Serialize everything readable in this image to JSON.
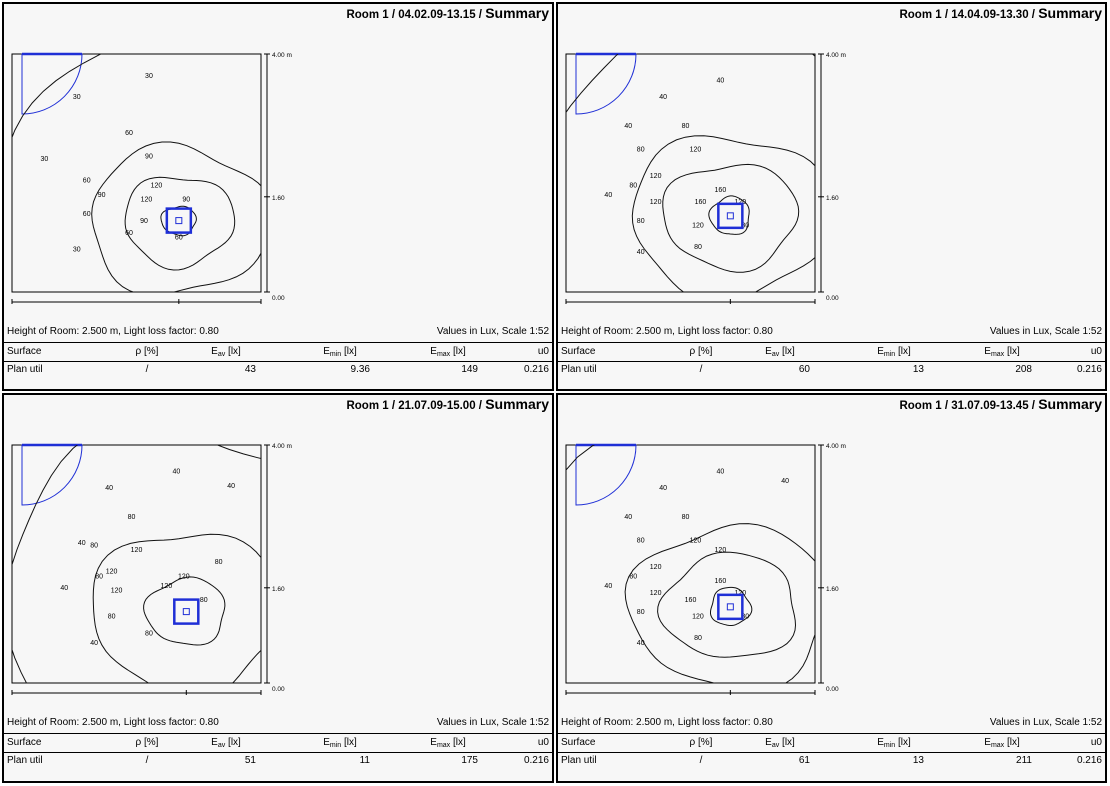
{
  "header": {
    "surface": "Surface",
    "rho_label": "ρ [%]",
    "eav_base": "E",
    "eav_sub": "av",
    "eav_unit": " [lx]",
    "emin_base": "E",
    "emin_sub": "min",
    "emin_unit": " [lx]",
    "emax_base": "E",
    "emax_sub": "max",
    "emax_unit": " [lx]",
    "u0": "u0"
  },
  "axis": {
    "x0": "0.00",
    "xmid": "2.70",
    "xmax": "4.00 m",
    "y0": "0.00",
    "ymid": "1.60",
    "ymax": "4.00 m"
  },
  "panels": [
    {
      "title_room": "Room 1 / 04.02.09-13.15 / ",
      "title_summary": "Summary",
      "info": "Height of Room: 2.500 m, Light loss factor: 0.80",
      "scale": "Values in Lux, Scale 1:52",
      "row": {
        "surface": "Plan util",
        "rho": "/",
        "eav": "43",
        "emin": "9.36",
        "emax": "149",
        "u0": "0.216"
      },
      "contours": [
        {
          "level": "30",
          "labels": [
            [
              0.26,
              0.19
            ],
            [
              0.13,
              0.45
            ],
            [
              0.26,
              0.83
            ],
            [
              0.55,
              0.1
            ]
          ]
        },
        {
          "level": "60",
          "labels": [
            [
              0.47,
              0.34
            ],
            [
              0.3,
              0.54
            ],
            [
              0.3,
              0.68
            ],
            [
              0.67,
              0.78
            ],
            [
              0.47,
              0.76
            ]
          ]
        },
        {
          "level": "90",
          "labels": [
            [
              0.55,
              0.44
            ],
            [
              0.36,
              0.6
            ],
            [
              0.53,
              0.71
            ],
            [
              0.7,
              0.62
            ]
          ]
        },
        {
          "level": "120",
          "labels": [
            [
              0.58,
              0.56
            ],
            [
              0.54,
              0.62
            ]
          ]
        }
      ]
    },
    {
      "title_room": "Room 1 / 14.04.09-13.30 / ",
      "title_summary": "Summary",
      "info": "Height of Room: 2.500 m, Light loss factor: 0.80",
      "scale": "Values in Lux, Scale 1:52",
      "row": {
        "surface": "Plan util",
        "rho": "/",
        "eav": "60",
        "emin": "13",
        "emax": "208",
        "u0": "0.216"
      },
      "contours": [
        {
          "level": "40",
          "labels": [
            [
              0.39,
              0.19
            ],
            [
              0.62,
              0.12
            ],
            [
              0.25,
              0.31
            ],
            [
              0.17,
              0.6
            ],
            [
              0.3,
              0.84
            ]
          ]
        },
        {
          "level": "80",
          "labels": [
            [
              0.48,
              0.31
            ],
            [
              0.3,
              0.41
            ],
            [
              0.27,
              0.56
            ],
            [
              0.3,
              0.71
            ],
            [
              0.53,
              0.82
            ],
            [
              0.72,
              0.73
            ]
          ]
        },
        {
          "level": "120",
          "labels": [
            [
              0.52,
              0.41
            ],
            [
              0.36,
              0.52
            ],
            [
              0.36,
              0.63
            ],
            [
              0.53,
              0.73
            ],
            [
              0.7,
              0.63
            ]
          ]
        },
        {
          "level": "160",
          "labels": [
            [
              0.54,
              0.63
            ],
            [
              0.62,
              0.58
            ]
          ]
        }
      ]
    },
    {
      "title_room": "Room 1 / 21.07.09-15.00 / ",
      "title_summary": "Summary",
      "info": "Height of Room: 2.500 m, Light loss factor: 0.80",
      "scale": "Values in Lux, Scale 1:52",
      "row": {
        "surface": "Plan util",
        "rho": "/",
        "eav": "51",
        "emin": "11",
        "emax": "175",
        "u0": "0.216"
      },
      "contours": [
        {
          "level": "40",
          "labels": [
            [
              0.39,
              0.19
            ],
            [
              0.66,
              0.12
            ],
            [
              0.88,
              0.18
            ],
            [
              0.28,
              0.42
            ],
            [
              0.21,
              0.61
            ],
            [
              0.33,
              0.84
            ]
          ]
        },
        {
          "level": "80",
          "labels": [
            [
              0.48,
              0.31
            ],
            [
              0.33,
              0.43
            ],
            [
              0.35,
              0.56
            ],
            [
              0.4,
              0.73
            ],
            [
              0.55,
              0.8
            ],
            [
              0.77,
              0.66
            ],
            [
              0.83,
              0.5
            ]
          ]
        },
        {
          "level": "120",
          "labels": [
            [
              0.5,
              0.45
            ],
            [
              0.4,
              0.54
            ],
            [
              0.42,
              0.62
            ],
            [
              0.62,
              0.6
            ],
            [
              0.69,
              0.56
            ]
          ]
        }
      ]
    },
    {
      "title_room": "Room 1 / 31.07.09-13.45 / ",
      "title_summary": "Summary",
      "info": "Height of Room: 2.500 m, Light loss factor: 0.80",
      "scale": "Values in Lux, Scale 1:52",
      "row": {
        "surface": "Plan util",
        "rho": "/",
        "eav": "61",
        "emin": "13",
        "emax": "211",
        "u0": "0.216"
      },
      "contours": [
        {
          "level": "40",
          "labels": [
            [
              0.39,
              0.19
            ],
            [
              0.62,
              0.12
            ],
            [
              0.88,
              0.16
            ],
            [
              0.25,
              0.31
            ],
            [
              0.17,
              0.6
            ],
            [
              0.3,
              0.84
            ]
          ]
        },
        {
          "level": "80",
          "labels": [
            [
              0.48,
              0.31
            ],
            [
              0.3,
              0.41
            ],
            [
              0.27,
              0.56
            ],
            [
              0.3,
              0.71
            ],
            [
              0.53,
              0.82
            ],
            [
              0.72,
              0.73
            ]
          ]
        },
        {
          "level": "120",
          "labels": [
            [
              0.52,
              0.41
            ],
            [
              0.36,
              0.52
            ],
            [
              0.36,
              0.63
            ],
            [
              0.53,
              0.73
            ],
            [
              0.7,
              0.63
            ],
            [
              0.62,
              0.45
            ]
          ]
        },
        {
          "level": "160",
          "labels": [
            [
              0.5,
              0.66
            ],
            [
              0.62,
              0.58
            ]
          ]
        }
      ]
    }
  ]
}
